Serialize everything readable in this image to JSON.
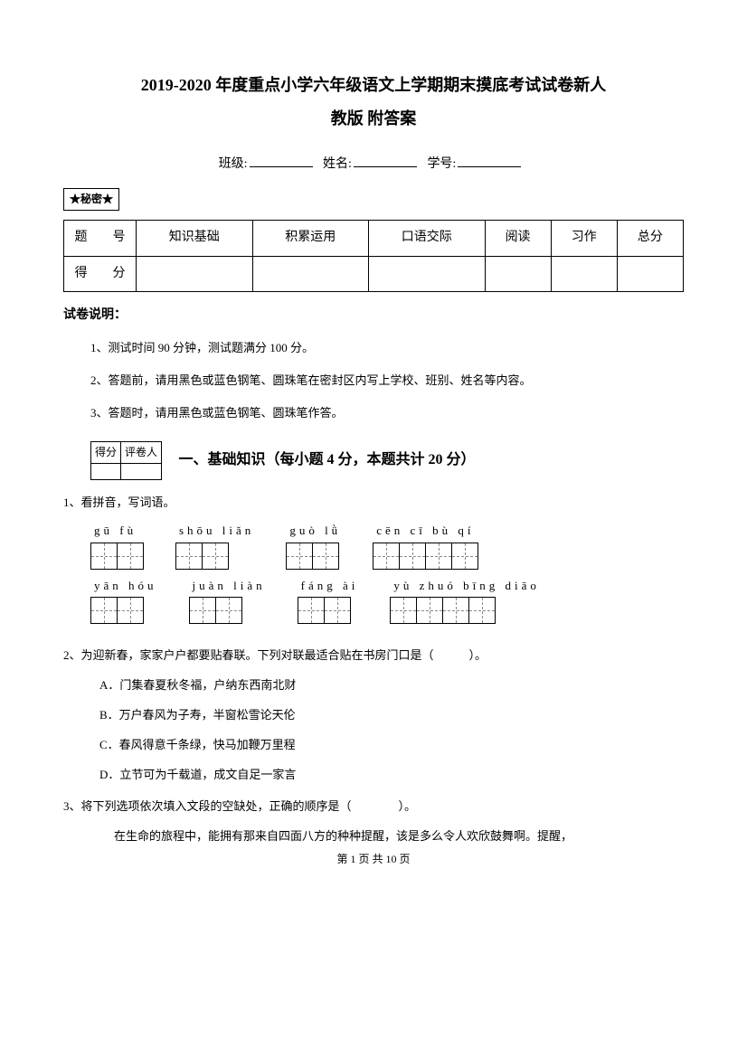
{
  "title": {
    "line1": "2019-2020 年度重点小学六年级语文上学期期末摸底考试试卷新人",
    "line2": "教版 附答案"
  },
  "info": {
    "class_label": "班级:",
    "name_label": "姓名:",
    "id_label": "学号:"
  },
  "secret_box": "★秘密★",
  "score_table": {
    "row1": [
      "题　　号",
      "知识基础",
      "积累运用",
      "口语交际",
      "阅读",
      "习作",
      "总分"
    ],
    "row2_label": "得　　分"
  },
  "instructions": {
    "title": "试卷说明：",
    "items": [
      "1、测试时间 90 分钟，测试题满分 100 分。",
      "2、答题前，请用黑色或蓝色钢笔、圆珠笔在密封区内写上学校、班别、姓名等内容。",
      "3、答题时，请用黑色或蓝色钢笔、圆珠笔作答。"
    ]
  },
  "grade_box": {
    "h1": "得分",
    "h2": "评卷人"
  },
  "section1": {
    "title": "一、基础知识（每小题 4 分，本题共计 20 分）"
  },
  "q1": {
    "text": "1、看拼音，写词语。",
    "row1": [
      {
        "pinyin": "gū  fù",
        "cells": 2
      },
      {
        "pinyin": "shōu liǎn",
        "cells": 2
      },
      {
        "pinyin": "guò  lǜ",
        "cells": 2
      },
      {
        "pinyin": "cēn  cī  bù  qí",
        "cells": 4
      }
    ],
    "row2": [
      {
        "pinyin": "yān  hóu",
        "cells": 2
      },
      {
        "pinyin": "juàn liàn",
        "cells": 2
      },
      {
        "pinyin": "fáng  ài",
        "cells": 2
      },
      {
        "pinyin": "yù zhuó bīng diāo",
        "cells": 4
      }
    ]
  },
  "q2": {
    "text": "2、为迎新春，家家户户都要贴春联。下列对联最适合贴在书房门口是（　　　）。",
    "options": [
      "A．门集春夏秋冬福，户纳东西南北财",
      "B．万户春风为子寿，半窗松雪论天伦",
      "C．春风得意千条绿，快马加鞭万里程",
      "D．立节可为千载道，成文自足一家言"
    ]
  },
  "q3": {
    "text": "3、将下列选项依次填入文段的空缺处，正确的顺序是（　　　　）。",
    "body": "在生命的旅程中，能拥有那来自四面八方的种种提醒，该是多么令人欢欣鼓舞啊。提醒，"
  },
  "footer": "第 1 页 共 10 页"
}
